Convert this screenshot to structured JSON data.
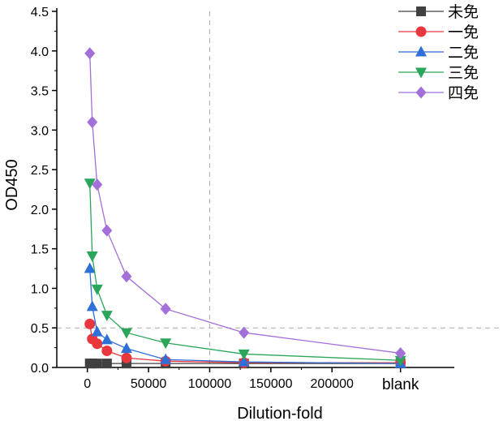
{
  "chart_data": {
    "type": "line",
    "xlabel": "Dilution-fold",
    "ylabel": "OD450",
    "xlim": [
      -25000,
      300000
    ],
    "ylim": [
      0,
      4.5
    ],
    "x_ticks": [
      {
        "value": 0,
        "label": "0"
      },
      {
        "value": 50000,
        "label": "50000"
      },
      {
        "value": 100000,
        "label": "100000"
      },
      {
        "value": 150000,
        "label": "150000"
      },
      {
        "value": 200000,
        "label": "200000"
      },
      {
        "value": 256000,
        "label": "blank"
      }
    ],
    "y_ticks": [
      {
        "value": 0,
        "label": "0.0"
      },
      {
        "value": 0.5,
        "label": "0.5"
      },
      {
        "value": 1.0,
        "label": "1.0"
      },
      {
        "value": 1.5,
        "label": "1.5"
      },
      {
        "value": 2.0,
        "label": "2.0"
      },
      {
        "value": 2.5,
        "label": "2.5"
      },
      {
        "value": 3.0,
        "label": "3.0"
      },
      {
        "value": 3.5,
        "label": "3.5"
      },
      {
        "value": 4.0,
        "label": "4.0"
      },
      {
        "value": 4.5,
        "label": "4.5"
      }
    ],
    "reference_lines": {
      "x": 100000,
      "y": 0.5,
      "style": "dashed"
    },
    "grid": false,
    "legend_position": "top-right",
    "series": [
      {
        "name": "未免",
        "color": "#404040",
        "marker": "square",
        "x": [
          2000,
          4000,
          8000,
          16000,
          32000,
          64000,
          128000,
          256000
        ],
        "y": [
          0.05,
          0.05,
          0.05,
          0.05,
          0.05,
          0.05,
          0.05,
          0.05
        ]
      },
      {
        "name": "一免",
        "color": "#e8383d",
        "marker": "circle",
        "x": [
          2000,
          4000,
          8000,
          16000,
          32000,
          64000,
          128000,
          256000
        ],
        "y": [
          0.55,
          0.36,
          0.3,
          0.21,
          0.12,
          0.08,
          0.06,
          0.06
        ]
      },
      {
        "name": "二免",
        "color": "#2e6fd8",
        "marker": "triangle-up",
        "x": [
          2000,
          4000,
          8000,
          16000,
          32000,
          64000,
          128000,
          256000
        ],
        "y": [
          1.25,
          0.77,
          0.45,
          0.35,
          0.24,
          0.1,
          0.07,
          0.05
        ]
      },
      {
        "name": "三免",
        "color": "#2aa65a",
        "marker": "triangle-down",
        "x": [
          2000,
          4000,
          8000,
          16000,
          32000,
          64000,
          128000,
          256000
        ],
        "y": [
          2.33,
          1.41,
          0.99,
          0.66,
          0.44,
          0.31,
          0.17,
          0.09
        ]
      },
      {
        "name": "四免",
        "color": "#a36fd8",
        "marker": "diamond",
        "x": [
          2000,
          4000,
          8000,
          16000,
          32000,
          64000,
          128000,
          256000
        ],
        "y": [
          3.97,
          3.1,
          2.31,
          1.73,
          1.15,
          0.74,
          0.44,
          0.18
        ]
      }
    ]
  }
}
